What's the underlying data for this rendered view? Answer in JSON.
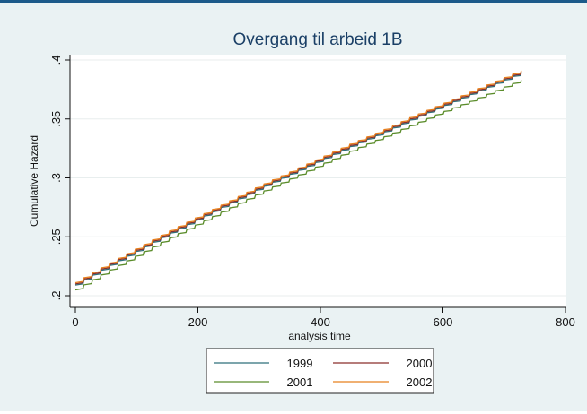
{
  "chart_data": {
    "type": "line",
    "title": "Overgang til arbeid 1B",
    "xlabel": "analysis time",
    "ylabel": "Cumulative Hazard",
    "xlim": [
      0,
      800
    ],
    "ylim": [
      0.2,
      0.4
    ],
    "x_ticks": [
      0,
      200,
      400,
      600,
      800
    ],
    "x_tick_labels": [
      "0",
      "200",
      "400",
      "600",
      "800"
    ],
    "y_ticks": [
      0.2,
      0.25,
      0.3,
      0.35,
      0.4
    ],
    "y_tick_labels": [
      ".2",
      ".25",
      ".3",
      ".35",
      ".4"
    ],
    "grid": "horizontal",
    "legend_position": "bottom",
    "step_interval": 14,
    "series": [
      {
        "name": "1999",
        "color": "#2e6f7a",
        "x": [
          0,
          50,
          100,
          150,
          200,
          250,
          300,
          350,
          400,
          450,
          500,
          550,
          600,
          650,
          700,
          728
        ],
        "y": [
          0.209,
          0.224,
          0.238,
          0.252,
          0.265,
          0.278,
          0.291,
          0.303,
          0.315,
          0.327,
          0.338,
          0.35,
          0.361,
          0.372,
          0.383,
          0.389
        ]
      },
      {
        "name": "2000",
        "color": "#8b2f2a",
        "x": [
          0,
          50,
          100,
          150,
          200,
          250,
          300,
          350,
          400,
          450,
          500,
          550,
          600,
          650,
          700,
          728
        ],
        "y": [
          0.21,
          0.225,
          0.239,
          0.253,
          0.266,
          0.279,
          0.292,
          0.304,
          0.316,
          0.328,
          0.339,
          0.351,
          0.362,
          0.373,
          0.384,
          0.39
        ]
      },
      {
        "name": "2001",
        "color": "#5a8c2a",
        "x": [
          0,
          50,
          100,
          150,
          200,
          250,
          300,
          350,
          400,
          450,
          500,
          550,
          600,
          650,
          700,
          728
        ],
        "y": [
          0.205,
          0.22,
          0.234,
          0.248,
          0.261,
          0.274,
          0.287,
          0.299,
          0.311,
          0.323,
          0.334,
          0.345,
          0.356,
          0.366,
          0.377,
          0.383
        ]
      },
      {
        "name": "2002",
        "color": "#e8801e",
        "x": [
          0,
          50,
          100,
          150,
          200,
          250,
          300,
          350,
          400,
          450,
          500,
          550,
          600,
          650,
          700,
          728
        ],
        "y": [
          0.211,
          0.226,
          0.24,
          0.254,
          0.267,
          0.28,
          0.293,
          0.305,
          0.317,
          0.329,
          0.34,
          0.352,
          0.363,
          0.374,
          0.385,
          0.391
        ]
      }
    ]
  }
}
